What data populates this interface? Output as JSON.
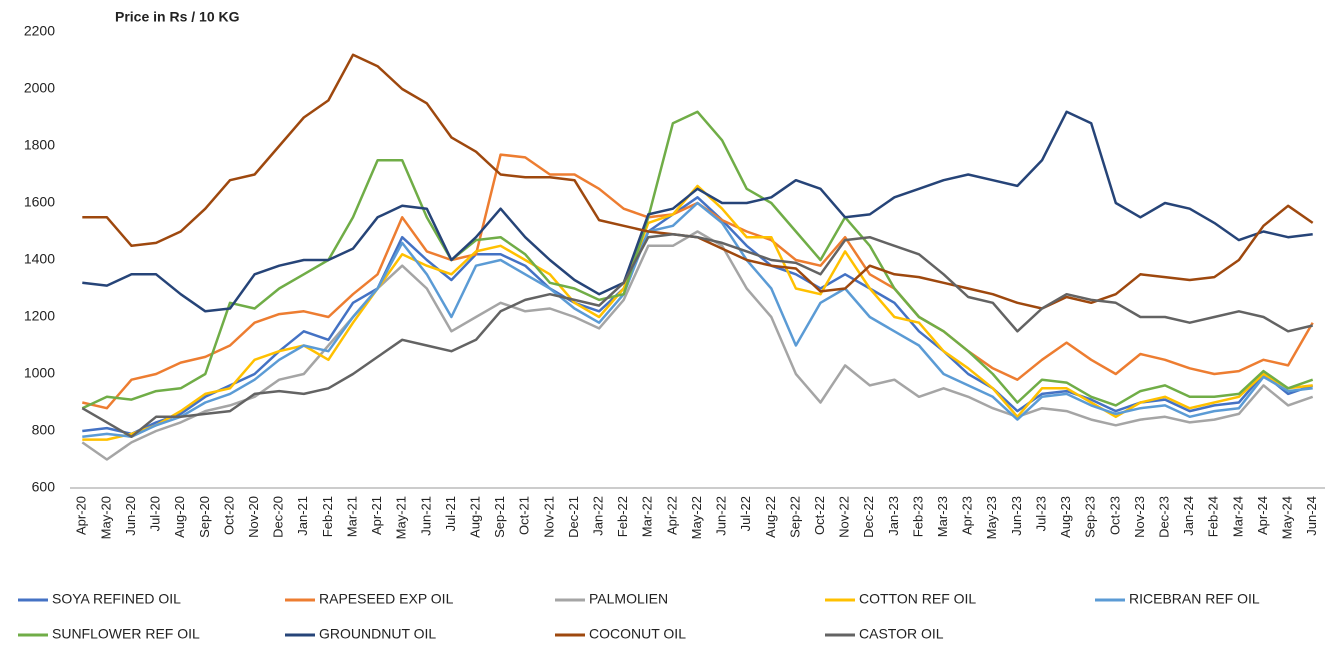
{
  "chart_data": {
    "type": "line",
    "title": "Price in Rs / 10 KG",
    "categories": [
      "Apr-20",
      "May-20",
      "Jun-20",
      "Jul-20",
      "Aug-20",
      "Sep-20",
      "Oct-20",
      "Nov-20",
      "Dec-20",
      "Jan-21",
      "Feb-21",
      "Mar-21",
      "Apr-21",
      "May-21",
      "Jun-21",
      "Jul-21",
      "Aug-21",
      "Sep-21",
      "Oct-21",
      "Nov-21",
      "Dec-21",
      "Jan-22",
      "Feb-22",
      "Mar-22",
      "Apr-22",
      "May-22",
      "Jun-22",
      "Jul-22",
      "Aug-22",
      "Sep-22",
      "Oct-22",
      "Nov-22",
      "Dec-22",
      "Jan-23",
      "Feb-23",
      "Mar-23",
      "Apr-23",
      "May-23",
      "Jun-23",
      "Jul-23",
      "Aug-23",
      "Sep-23",
      "Oct-23",
      "Nov-23",
      "Dec-23",
      "Jan-24",
      "Feb-24",
      "Mar-24",
      "Apr-24",
      "May-24",
      "Jun-24"
    ],
    "ylim": [
      600,
      2200
    ],
    "yticks": [
      600,
      800,
      1000,
      1200,
      1400,
      1600,
      1800,
      2000,
      2200
    ],
    "grid": false,
    "series": [
      {
        "name": "SOYA REFINED OIL",
        "color": "#4472c4",
        "values": [
          800,
          810,
          790,
          830,
          860,
          920,
          960,
          1000,
          1080,
          1150,
          1120,
          1250,
          1300,
          1480,
          1400,
          1330,
          1420,
          1420,
          1380,
          1300,
          1250,
          1220,
          1300,
          1500,
          1560,
          1620,
          1540,
          1450,
          1380,
          1350,
          1300,
          1350,
          1300,
          1250,
          1150,
          1080,
          1000,
          950,
          870,
          930,
          940,
          910,
          870,
          900,
          910,
          870,
          890,
          900,
          1000,
          930,
          960
        ]
      },
      {
        "name": "RAPESEED EXP OIL",
        "color": "#ed7d31",
        "values": [
          900,
          880,
          980,
          1000,
          1040,
          1060,
          1100,
          1180,
          1210,
          1220,
          1200,
          1280,
          1350,
          1550,
          1430,
          1400,
          1420,
          1770,
          1760,
          1700,
          1700,
          1650,
          1580,
          1550,
          1560,
          1600,
          1540,
          1500,
          1470,
          1400,
          1380,
          1480,
          1350,
          1300,
          1200,
          1150,
          1080,
          1020,
          980,
          1050,
          1110,
          1050,
          1000,
          1070,
          1050,
          1020,
          1000,
          1010,
          1050,
          1030,
          1180
        ]
      },
      {
        "name": "PALMOLIEN",
        "color": "#a5a5a5",
        "values": [
          760,
          700,
          760,
          800,
          830,
          870,
          890,
          920,
          980,
          1000,
          1100,
          1200,
          1300,
          1380,
          1300,
          1150,
          1200,
          1250,
          1220,
          1230,
          1200,
          1160,
          1260,
          1450,
          1450,
          1500,
          1450,
          1300,
          1200,
          1000,
          900,
          1030,
          960,
          980,
          920,
          950,
          920,
          880,
          850,
          880,
          870,
          840,
          820,
          840,
          850,
          830,
          840,
          860,
          960,
          890,
          920
        ]
      },
      {
        "name": "COTTON REF OIL",
        "color": "#ffc000",
        "values": [
          770,
          770,
          790,
          820,
          870,
          930,
          950,
          1050,
          1080,
          1100,
          1050,
          1180,
          1300,
          1420,
          1380,
          1350,
          1430,
          1450,
          1400,
          1350,
          1250,
          1200,
          1300,
          1530,
          1560,
          1660,
          1580,
          1480,
          1480,
          1300,
          1280,
          1430,
          1300,
          1200,
          1180,
          1080,
          1020,
          950,
          850,
          950,
          950,
          900,
          850,
          900,
          920,
          880,
          900,
          920,
          1000,
          950,
          960
        ]
      },
      {
        "name": "RICEBRAN REF OIL",
        "color": "#5b9bd5",
        "values": [
          780,
          790,
          780,
          820,
          850,
          900,
          930,
          980,
          1050,
          1100,
          1080,
          1200,
          1300,
          1460,
          1350,
          1200,
          1380,
          1400,
          1350,
          1300,
          1230,
          1180,
          1280,
          1500,
          1520,
          1600,
          1530,
          1400,
          1300,
          1100,
          1250,
          1300,
          1200,
          1150,
          1100,
          1000,
          960,
          920,
          840,
          920,
          930,
          890,
          860,
          880,
          890,
          850,
          870,
          880,
          990,
          940,
          950
        ]
      },
      {
        "name": "SUNFLOWER REF OIL",
        "color": "#70ad47",
        "values": [
          880,
          920,
          910,
          940,
          950,
          1000,
          1250,
          1230,
          1300,
          1350,
          1400,
          1550,
          1750,
          1750,
          1550,
          1400,
          1470,
          1480,
          1420,
          1320,
          1300,
          1260,
          1280,
          1550,
          1880,
          1920,
          1820,
          1650,
          1600,
          1500,
          1400,
          1550,
          1450,
          1300,
          1200,
          1150,
          1080,
          1000,
          900,
          980,
          970,
          920,
          890,
          940,
          960,
          920,
          920,
          930,
          1010,
          950,
          980
        ]
      },
      {
        "name": "GROUNDNUT OIL",
        "color": "#264478",
        "values": [
          1320,
          1310,
          1350,
          1350,
          1280,
          1220,
          1230,
          1350,
          1380,
          1400,
          1400,
          1440,
          1550,
          1590,
          1580,
          1400,
          1480,
          1580,
          1480,
          1400,
          1330,
          1280,
          1320,
          1560,
          1580,
          1650,
          1600,
          1600,
          1620,
          1680,
          1650,
          1550,
          1560,
          1620,
          1650,
          1680,
          1700,
          1680,
          1660,
          1750,
          1920,
          1880,
          1600,
          1550,
          1600,
          1580,
          1530,
          1470,
          1500,
          1480,
          1490
        ]
      },
      {
        "name": "COCONUT OIL",
        "color": "#9e480e",
        "values": [
          1550,
          1550,
          1450,
          1460,
          1500,
          1580,
          1680,
          1700,
          1800,
          1900,
          1960,
          2120,
          2080,
          2000,
          1950,
          1830,
          1780,
          1700,
          1690,
          1690,
          1680,
          1540,
          1520,
          1500,
          1490,
          1480,
          1440,
          1400,
          1380,
          1370,
          1290,
          1300,
          1380,
          1350,
          1340,
          1320,
          1300,
          1280,
          1250,
          1230,
          1270,
          1250,
          1280,
          1350,
          1340,
          1330,
          1340,
          1400,
          1520,
          1590,
          1530
        ]
      },
      {
        "name": "CASTOR OIL",
        "color": "#636363",
        "values": [
          880,
          830,
          780,
          850,
          850,
          860,
          870,
          930,
          940,
          930,
          950,
          1000,
          1060,
          1120,
          1100,
          1080,
          1120,
          1220,
          1260,
          1280,
          1260,
          1240,
          1320,
          1480,
          1490,
          1480,
          1460,
          1430,
          1400,
          1390,
          1350,
          1470,
          1480,
          1450,
          1420,
          1350,
          1270,
          1250,
          1150,
          1230,
          1280,
          1260,
          1250,
          1200,
          1200,
          1180,
          1200,
          1220,
          1200,
          1150,
          1170
        ]
      }
    ]
  }
}
